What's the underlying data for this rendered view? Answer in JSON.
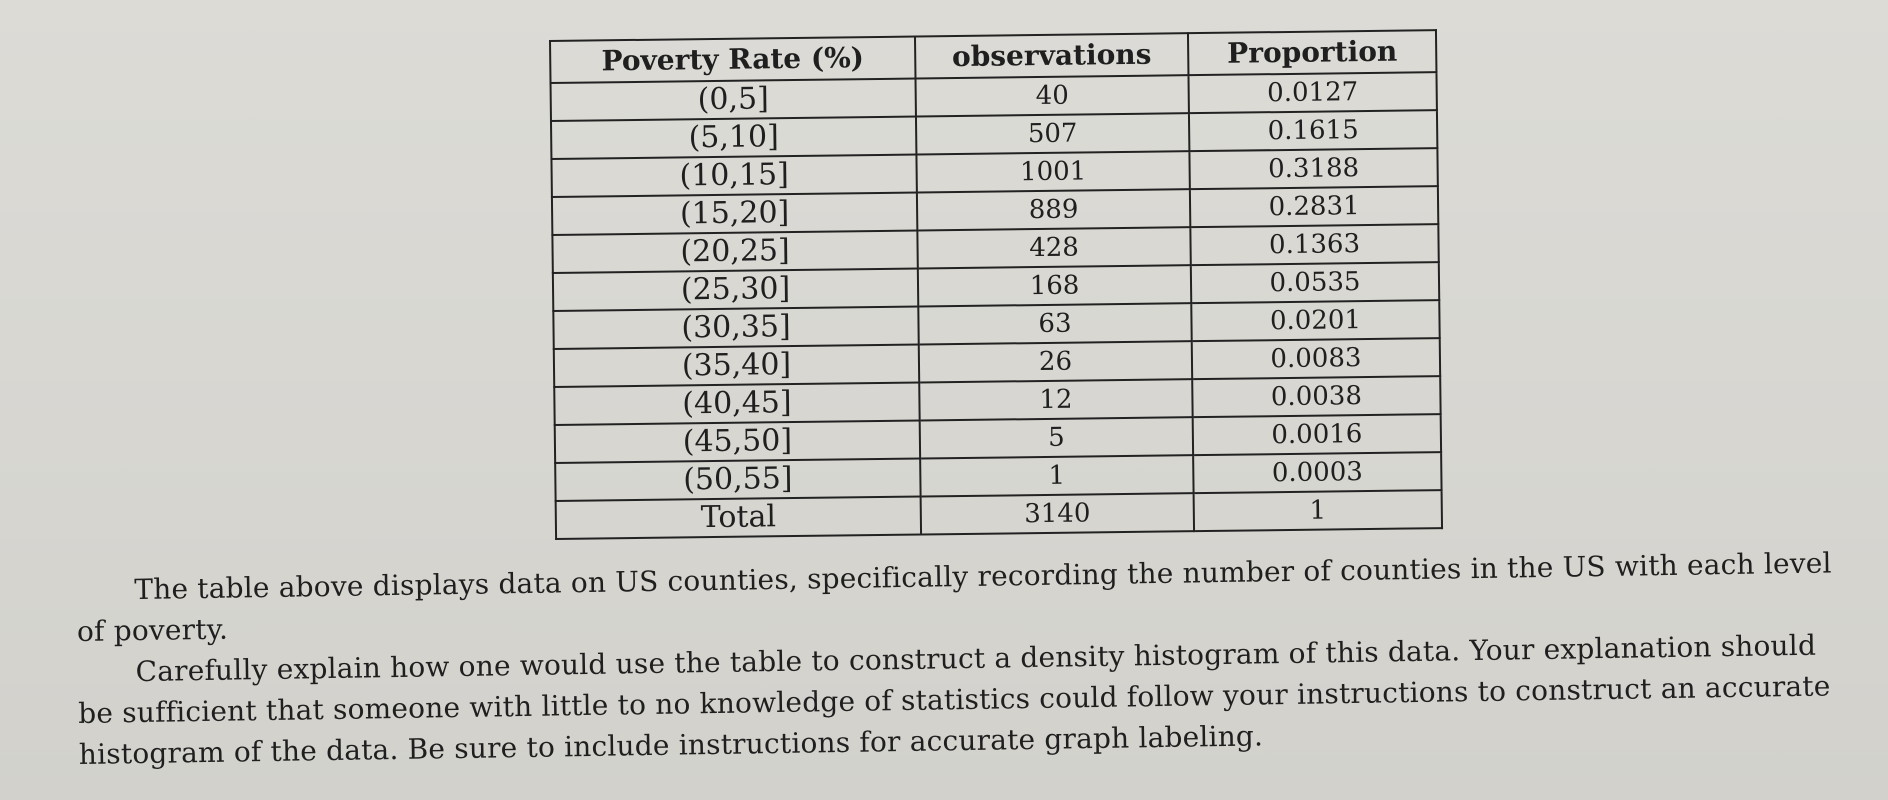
{
  "table": {
    "headers": [
      "Poverty Rate (%)",
      "observations",
      "Proportion"
    ],
    "rows": [
      [
        "(0,5]",
        "40",
        "0.0127"
      ],
      [
        "(5,10]",
        "507",
        "0.1615"
      ],
      [
        "(10,15]",
        "1001",
        "0.3188"
      ],
      [
        "(15,20]",
        "889",
        "0.2831"
      ],
      [
        "(20,25]",
        "428",
        "0.1363"
      ],
      [
        "(25,30]",
        "168",
        "0.0535"
      ],
      [
        "(30,35]",
        "63",
        "0.0201"
      ],
      [
        "(35,40]",
        "26",
        "0.0083"
      ],
      [
        "(40,45]",
        "12",
        "0.0038"
      ],
      [
        "(45,50]",
        "5",
        "0.0016"
      ],
      [
        "(50,55]",
        "1",
        "0.0003"
      ],
      [
        "Total",
        "3140",
        "1"
      ]
    ]
  },
  "text": {
    "paragraph_1": "The table above displays data on US counties, specifically recording the number of counties in the US with each level of poverty.",
    "paragraph_2": "Carefully explain how one would use the table to construct a density histogram of this data. Your explanation should be sufficient that someone with little to no knowledge of statistics could follow your instructions to construct an accurate histogram of the data. Be sure to include instructions for accurate graph labeling."
  }
}
